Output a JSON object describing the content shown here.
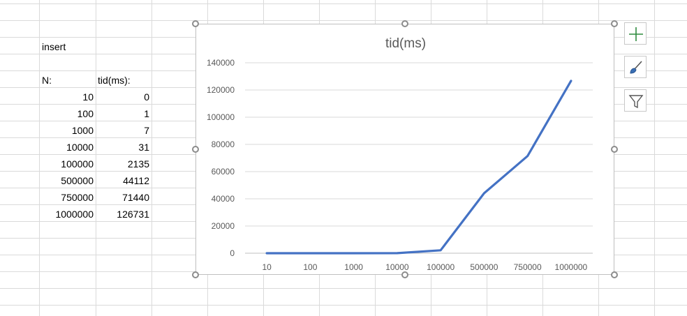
{
  "sheet": {
    "title_cell": "insert",
    "headers": [
      "N:",
      "tid(ms):"
    ],
    "rows": [
      {
        "n": "10",
        "tid": "0"
      },
      {
        "n": "100",
        "tid": "1"
      },
      {
        "n": "1000",
        "tid": "7"
      },
      {
        "n": "10000",
        "tid": "31"
      },
      {
        "n": "100000",
        "tid": "2135"
      },
      {
        "n": "500000",
        "tid": "44112"
      },
      {
        "n": "750000",
        "tid": "71440"
      },
      {
        "n": "1000000",
        "tid": "126731"
      }
    ]
  },
  "chart_data": {
    "type": "line",
    "title": "tid(ms)",
    "categories": [
      "10",
      "100",
      "1000",
      "10000",
      "100000",
      "500000",
      "750000",
      "1000000"
    ],
    "series": [
      {
        "values": [
          0,
          1,
          7,
          31,
          2135,
          44112,
          71440,
          126731
        ],
        "color": "#4472c4"
      }
    ],
    "ylim": [
      0,
      140000
    ],
    "yticks": [
      "0",
      "20000",
      "40000",
      "60000",
      "80000",
      "100000",
      "120000",
      "140000"
    ],
    "grid": true,
    "legend": "none"
  },
  "side_buttons": [
    {
      "icon": "plus-icon",
      "color": "#2e8b3e"
    },
    {
      "icon": "brush-icon",
      "color": "#3a6fb5"
    },
    {
      "icon": "filter-icon",
      "color": "#555555"
    }
  ]
}
